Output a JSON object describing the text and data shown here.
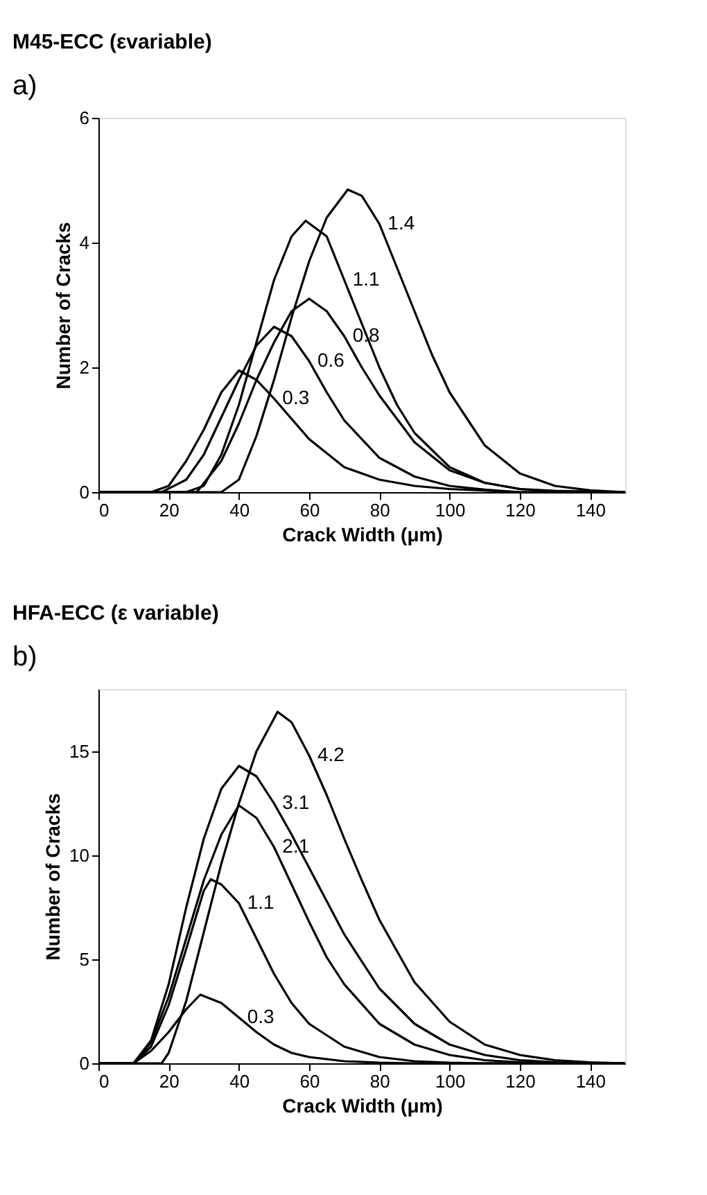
{
  "chart_data": [
    {
      "type": "line",
      "title": "M45-ECC (εvariable)",
      "annotations": [
        "a)"
      ],
      "xlabel": "Crack Width (μm)",
      "ylabel": "Number of Cracks",
      "xlim": [
        0,
        150
      ],
      "xticks": [
        0,
        20,
        40,
        60,
        80,
        100,
        120,
        140
      ],
      "ylim": [
        0,
        6
      ],
      "yticks": [
        0,
        2,
        4,
        6
      ],
      "grid": false,
      "legend": false,
      "marker": "none",
      "line_style": "solid",
      "series": [
        {
          "name": "0.3",
          "color": "#000000",
          "x": [
            0,
            15,
            20,
            25,
            30,
            35,
            40,
            45,
            50,
            60,
            70,
            80,
            90,
            100,
            120,
            150
          ],
          "values": [
            0,
            0,
            0.1,
            0.5,
            1.0,
            1.6,
            1.95,
            1.8,
            1.5,
            0.85,
            0.4,
            0.2,
            0.1,
            0.05,
            0,
            0
          ]
        },
        {
          "name": "0.6",
          "color": "#000000",
          "x": [
            0,
            18,
            25,
            30,
            35,
            40,
            45,
            50,
            55,
            60,
            65,
            70,
            80,
            90,
            100,
            110,
            120,
            150
          ],
          "values": [
            0,
            0,
            0.2,
            0.6,
            1.2,
            1.8,
            2.35,
            2.65,
            2.5,
            2.1,
            1.6,
            1.15,
            0.55,
            0.25,
            0.1,
            0.04,
            0,
            0
          ]
        },
        {
          "name": "0.8",
          "color": "#000000",
          "x": [
            0,
            28,
            35,
            40,
            45,
            50,
            55,
            60,
            65,
            70,
            75,
            80,
            90,
            100,
            110,
            120,
            130,
            150
          ],
          "values": [
            0,
            0,
            0.5,
            1.1,
            1.8,
            2.4,
            2.9,
            3.1,
            2.9,
            2.5,
            2.0,
            1.55,
            0.8,
            0.35,
            0.15,
            0.05,
            0.02,
            0
          ]
        },
        {
          "name": "1.1",
          "color": "#000000",
          "x": [
            0,
            25,
            30,
            35,
            40,
            45,
            50,
            55,
            59,
            65,
            70,
            75,
            80,
            85,
            90,
            100,
            110,
            120,
            130,
            150
          ],
          "values": [
            0,
            0,
            0.1,
            0.6,
            1.4,
            2.4,
            3.4,
            4.1,
            4.35,
            4.1,
            3.4,
            2.7,
            2.0,
            1.4,
            0.95,
            0.4,
            0.15,
            0.05,
            0.01,
            0
          ]
        },
        {
          "name": "1.4",
          "color": "#000000",
          "x": [
            0,
            35,
            40,
            45,
            50,
            55,
            60,
            65,
            71,
            75,
            80,
            85,
            90,
            95,
            100,
            110,
            120,
            130,
            140,
            150
          ],
          "values": [
            0,
            0,
            0.2,
            0.9,
            1.8,
            2.8,
            3.7,
            4.4,
            4.85,
            4.75,
            4.3,
            3.6,
            2.9,
            2.2,
            1.6,
            0.75,
            0.3,
            0.1,
            0.03,
            0
          ]
        }
      ]
    },
    {
      "type": "line",
      "title": "HFA-ECC (ε variable)",
      "annotations": [
        "b)"
      ],
      "xlabel": "Crack Width (μm)",
      "ylabel": "Number of Cracks",
      "xlim": [
        0,
        150
      ],
      "xticks": [
        0,
        20,
        40,
        60,
        80,
        100,
        120,
        140
      ],
      "ylim": [
        0,
        18
      ],
      "yticks": [
        0,
        5,
        10,
        15
      ],
      "grid": false,
      "legend": false,
      "marker": "none",
      "line_style": "solid",
      "series": [
        {
          "name": "0.3",
          "color": "#000000",
          "x": [
            0,
            5,
            10,
            15,
            20,
            25,
            29,
            35,
            40,
            45,
            50,
            55,
            60,
            70,
            80,
            90,
            150
          ],
          "values": [
            0,
            0,
            0,
            0.6,
            1.5,
            2.6,
            3.3,
            2.9,
            2.2,
            1.5,
            0.9,
            0.5,
            0.3,
            0.1,
            0.03,
            0,
            0
          ]
        },
        {
          "name": "1.1",
          "color": "#000000",
          "x": [
            0,
            10,
            15,
            20,
            25,
            30,
            32,
            35,
            40,
            45,
            50,
            55,
            60,
            70,
            80,
            90,
            100,
            110,
            150
          ],
          "values": [
            0,
            0,
            0.8,
            2.8,
            5.5,
            8.3,
            8.85,
            8.6,
            7.7,
            6.0,
            4.3,
            2.9,
            1.9,
            0.8,
            0.3,
            0.1,
            0.03,
            0,
            0
          ]
        },
        {
          "name": "2.1",
          "color": "#000000",
          "x": [
            0,
            10,
            15,
            20,
            25,
            30,
            35,
            40,
            45,
            50,
            55,
            60,
            65,
            70,
            80,
            90,
            100,
            110,
            120,
            130,
            150
          ],
          "values": [
            0,
            0,
            1.0,
            3.2,
            6.0,
            8.8,
            11.0,
            12.4,
            11.8,
            10.4,
            8.6,
            6.8,
            5.1,
            3.8,
            1.9,
            0.9,
            0.4,
            0.15,
            0.05,
            0,
            0
          ]
        },
        {
          "name": "3.1",
          "color": "#000000",
          "x": [
            0,
            10,
            15,
            20,
            25,
            30,
            35,
            40,
            45,
            50,
            55,
            60,
            65,
            70,
            80,
            90,
            100,
            110,
            120,
            130,
            140,
            150
          ],
          "values": [
            0,
            0,
            1.1,
            3.8,
            7.5,
            10.8,
            13.2,
            14.3,
            13.8,
            12.5,
            11.0,
            9.4,
            7.8,
            6.2,
            3.6,
            1.9,
            0.9,
            0.4,
            0.15,
            0.05,
            0,
            0
          ]
        },
        {
          "name": "4.2",
          "color": "#000000",
          "x": [
            0,
            18,
            20,
            25,
            30,
            35,
            40,
            45,
            51,
            55,
            60,
            65,
            70,
            75,
            80,
            90,
            100,
            110,
            120,
            130,
            140,
            150
          ],
          "values": [
            0,
            0,
            0.5,
            3.0,
            6.3,
            9.6,
            12.5,
            15.0,
            16.9,
            16.4,
            14.8,
            12.9,
            10.8,
            8.8,
            6.9,
            3.9,
            2.0,
            0.9,
            0.4,
            0.15,
            0.05,
            0
          ]
        }
      ]
    }
  ]
}
